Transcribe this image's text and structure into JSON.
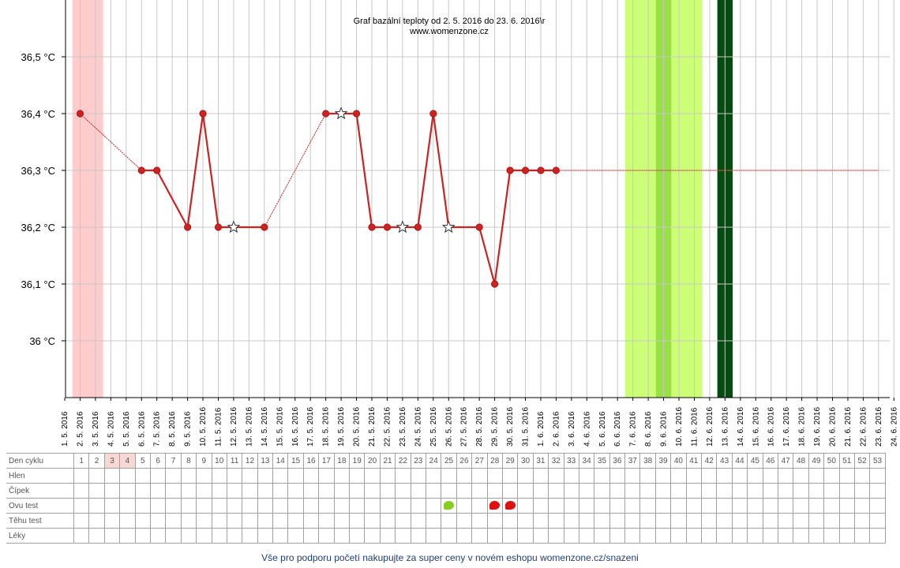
{
  "chart_data": {
    "type": "line",
    "title": "Graf bazální teploty od 2. 5. 2016 do 23. 6. 2016\\r",
    "subtitle": "www.womenzone.cz",
    "y_unit": "°C",
    "ylim": [
      35.9,
      36.6
    ],
    "y_ticks": [
      "36 °C",
      "36,1 °C",
      "36,2 °C",
      "36,3 °C",
      "36,4 °C",
      "36,5 °C"
    ],
    "y_tick_values": [
      36.0,
      36.1,
      36.2,
      36.3,
      36.4,
      36.5
    ],
    "x_ticks": [
      "1. 5. 2016",
      "2. 5. 2016",
      "3. 5. 2016",
      "4. 5. 2016",
      "5. 5. 2016",
      "6. 5. 2016",
      "7. 5. 2016",
      "8. 5. 2016",
      "9. 5. 2016",
      "10. 5. 2016",
      "11. 5. 2016",
      "12. 5. 2016",
      "13. 5. 2016",
      "14. 5. 2016",
      "15. 5. 2016",
      "16. 5. 2016",
      "17. 5. 2016",
      "18. 5. 2016",
      "19. 5. 2016",
      "20. 5. 2016",
      "21. 5. 2016",
      "22. 5. 2016",
      "23. 5. 2016",
      "24. 5. 2016",
      "25. 5. 2016",
      "26. 5. 2016",
      "27. 5. 2016",
      "28. 5. 2016",
      "29. 5. 2016",
      "30. 5. 2016",
      "31. 5. 2016",
      "1. 6. 2016",
      "2. 6. 2016",
      "3. 6. 2016",
      "4. 6. 2016",
      "5. 6. 2016",
      "6. 6. 2016",
      "7. 6. 2016",
      "8. 6. 2016",
      "9. 6. 2016",
      "10. 6. 2016",
      "11. 6. 2016",
      "12. 6. 2016",
      "13. 6. 2016",
      "14. 6. 2016",
      "15. 6. 2016",
      "16. 6. 2016",
      "17. 6. 2016",
      "18. 6. 2016",
      "19. 6. 2016",
      "20. 6. 2016",
      "21. 6. 2016",
      "22. 6. 2016",
      "23. 6. 2016",
      "24. 6. 2016"
    ],
    "points": [
      {
        "date": "2. 5. 2016",
        "value": 36.4,
        "marker": "dot"
      },
      {
        "date": "6. 5. 2016",
        "value": 36.3,
        "marker": "dot"
      },
      {
        "date": "7. 5. 2016",
        "value": 36.3,
        "marker": "dot"
      },
      {
        "date": "9. 5. 2016",
        "value": 36.2,
        "marker": "dot"
      },
      {
        "date": "10. 5. 2016",
        "value": 36.4,
        "marker": "dot"
      },
      {
        "date": "11. 5. 2016",
        "value": 36.2,
        "marker": "dot"
      },
      {
        "date": "12. 5. 2016",
        "value": 36.2,
        "marker": "star"
      },
      {
        "date": "14. 5. 2016",
        "value": 36.2,
        "marker": "dot"
      },
      {
        "date": "18. 5. 2016",
        "value": 36.4,
        "marker": "dot"
      },
      {
        "date": "19. 5. 2016",
        "value": 36.4,
        "marker": "star"
      },
      {
        "date": "20. 5. 2016",
        "value": 36.4,
        "marker": "dot"
      },
      {
        "date": "21. 5. 2016",
        "value": 36.2,
        "marker": "dot"
      },
      {
        "date": "22. 5. 2016",
        "value": 36.2,
        "marker": "dot"
      },
      {
        "date": "23. 5. 2016",
        "value": 36.2,
        "marker": "star"
      },
      {
        "date": "24. 5. 2016",
        "value": 36.2,
        "marker": "dot"
      },
      {
        "date": "25. 5. 2016",
        "value": 36.4,
        "marker": "dot"
      },
      {
        "date": "26. 5. 2016",
        "value": 36.2,
        "marker": "star"
      },
      {
        "date": "28. 5. 2016",
        "value": 36.2,
        "marker": "dot"
      },
      {
        "date": "29. 5. 2016",
        "value": 36.1,
        "marker": "dot"
      },
      {
        "date": "30. 5. 2016",
        "value": 36.3,
        "marker": "dot"
      },
      {
        "date": "31. 5. 2016",
        "value": 36.3,
        "marker": "dot"
      },
      {
        "date": "1. 6. 2016",
        "value": 36.3,
        "marker": "dot"
      },
      {
        "date": "2. 6. 2016",
        "value": 36.3,
        "marker": "dot"
      }
    ],
    "coverline": {
      "value": 36.3,
      "from": "2. 6. 2016",
      "to": "23. 6. 2016"
    },
    "bands": [
      {
        "from": "2. 5. 2016",
        "to": "3. 5. 2016",
        "color": "#ffcccc"
      },
      {
        "from": "7. 6. 2016",
        "to": "11. 6. 2016",
        "color": "#ccff77"
      },
      {
        "from": "9. 6. 2016",
        "to": "9. 6. 2016",
        "color": "#99e044"
      },
      {
        "from": "13. 6. 2016",
        "to": "13. 6. 2016",
        "color": "#004d0d"
      }
    ],
    "line_color": "#cc2222",
    "grid": true
  },
  "table": {
    "row_labels": [
      "Den cyklu",
      "Hlen",
      "Čípek",
      "Ovu test",
      "Těhu test",
      "Léky"
    ],
    "cycle_days": [
      "1",
      "2",
      "3",
      "4",
      "5",
      "6",
      "7",
      "8",
      "9",
      "10",
      "11",
      "12",
      "13",
      "14",
      "15",
      "16",
      "17",
      "18",
      "19",
      "20",
      "21",
      "22",
      "23",
      "24",
      "25",
      "26",
      "27",
      "28",
      "29",
      "30",
      "31",
      "32",
      "33",
      "34",
      "35",
      "36",
      "37",
      "38",
      "39",
      "40",
      "41",
      "42",
      "43",
      "44",
      "45",
      "46",
      "47",
      "48",
      "49",
      "50",
      "51",
      "52",
      "53"
    ],
    "highlight_days": [
      "3",
      "4"
    ],
    "ovu_tests": [
      {
        "day": "25",
        "result": "positive",
        "color": "#88cc22"
      },
      {
        "day": "28",
        "result": "negative",
        "color": "#dd1111"
      },
      {
        "day": "29",
        "result": "negative",
        "color": "#dd1111"
      }
    ]
  },
  "footer": {
    "text": "Vše pro podporu početí nakupujte za super ceny v novém eshopu womenzone.cz/snazeni"
  }
}
